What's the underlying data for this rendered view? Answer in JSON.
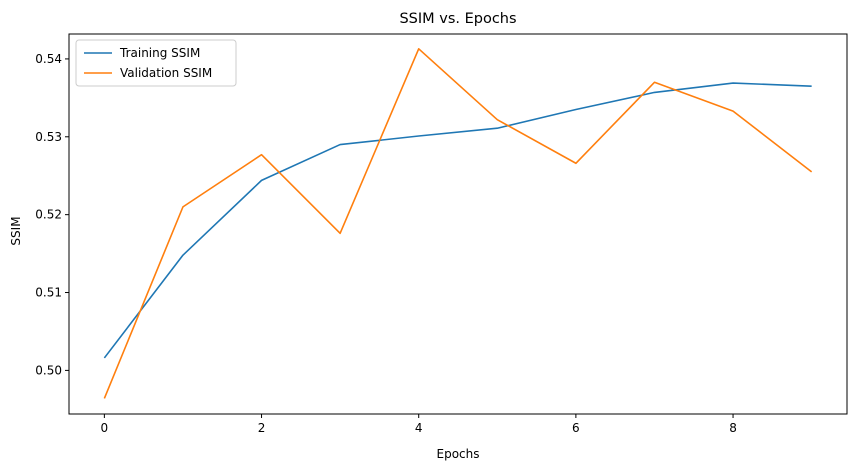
{
  "chart_data": {
    "type": "line",
    "title": "SSIM vs. Epochs",
    "xlabel": "Epochs",
    "ylabel": "SSIM",
    "x": [
      0,
      1,
      2,
      3,
      4,
      5,
      6,
      7,
      8,
      9
    ],
    "xlim": [
      -0.45,
      9.45
    ],
    "ylim": [
      0.4944,
      0.5432
    ],
    "xticks": [
      0,
      2,
      4,
      6,
      8
    ],
    "yticks": [
      0.5,
      0.51,
      0.52,
      0.53,
      0.54
    ],
    "xtick_labels": [
      "0",
      "2",
      "4",
      "6",
      "8"
    ],
    "ytick_labels": [
      "0.50",
      "0.51",
      "0.52",
      "0.53",
      "0.54"
    ],
    "grid": false,
    "legend_position": "top-left",
    "series": [
      {
        "name": "Training SSIM",
        "color": "#1f77b4",
        "values": [
          0.5016,
          0.5148,
          0.5244,
          0.529,
          0.5301,
          0.5311,
          0.5335,
          0.5357,
          0.5369,
          0.5365
        ]
      },
      {
        "name": "Validation SSIM",
        "color": "#ff7f0e",
        "values": [
          0.4964,
          0.521,
          0.5277,
          0.5176,
          0.5413,
          0.5322,
          0.5266,
          0.537,
          0.5333,
          0.5255
        ]
      }
    ]
  }
}
